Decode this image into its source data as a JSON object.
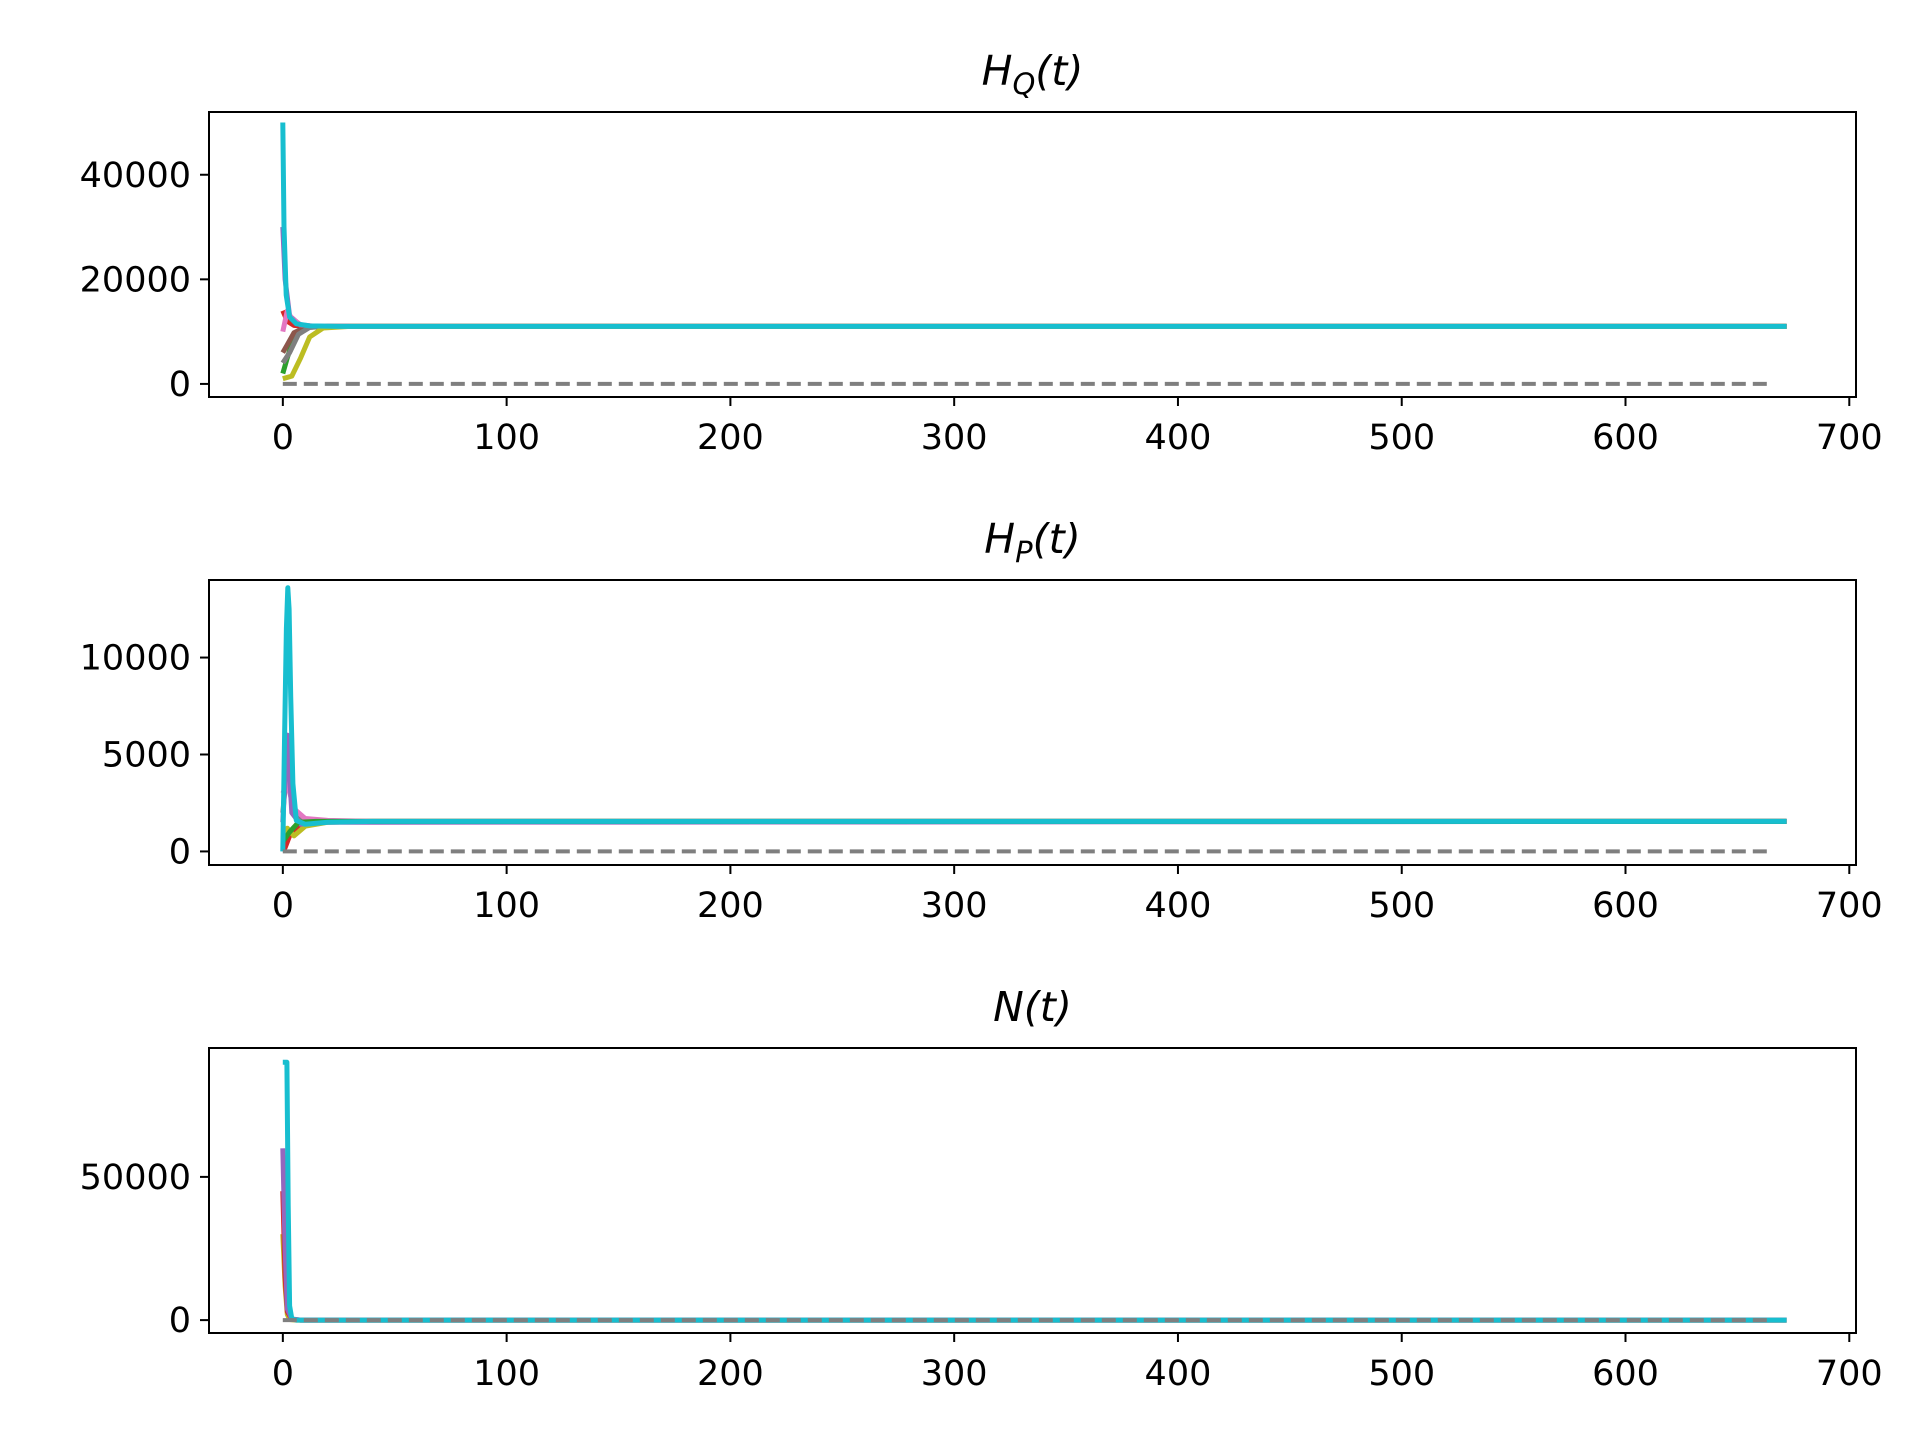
{
  "chart_data": [
    {
      "type": "line",
      "title": "H_Q(t)",
      "title_main": "H",
      "title_sub": "Q",
      "title_tail": "(t)",
      "xlim": [
        -33,
        703
      ],
      "ylim": [
        -2500,
        52000
      ],
      "xticks": [
        0,
        100,
        200,
        300,
        400,
        500,
        600,
        700
      ],
      "yticks": [
        0,
        20000,
        40000
      ],
      "series": [
        {
          "color": "#2ca02c",
          "style": "solid",
          "points": [
            [
              0,
              2000
            ],
            [
              2,
              5000
            ],
            [
              5,
              9000
            ],
            [
              10,
              10800
            ],
            [
              20,
              11000
            ],
            [
              672,
              11000
            ]
          ]
        },
        {
          "color": "#d62728",
          "style": "solid",
          "points": [
            [
              0,
              14000
            ],
            [
              2,
              12000
            ],
            [
              5,
              11200
            ],
            [
              10,
              11000
            ],
            [
              672,
              11000
            ]
          ]
        },
        {
          "color": "#9467bd",
          "style": "solid",
          "points": [
            [
              0,
              30000
            ],
            [
              1,
              20000
            ],
            [
              3,
              13000
            ],
            [
              8,
              11200
            ],
            [
              15,
              11000
            ],
            [
              672,
              11000
            ]
          ]
        },
        {
          "color": "#8c564b",
          "style": "solid",
          "points": [
            [
              0,
              6000
            ],
            [
              2,
              7500
            ],
            [
              5,
              9800
            ],
            [
              10,
              10800
            ],
            [
              20,
              11000
            ],
            [
              672,
              11000
            ]
          ]
        },
        {
          "color": "#e377c2",
          "style": "solid",
          "points": [
            [
              0,
              10000
            ],
            [
              2,
              14000
            ],
            [
              4,
              12500
            ],
            [
              8,
              11300
            ],
            [
              15,
              11000
            ],
            [
              672,
              11000
            ]
          ]
        },
        {
          "color": "#7f7f7f",
          "style": "solid",
          "points": [
            [
              0,
              4000
            ],
            [
              3,
              6000
            ],
            [
              7,
              9500
            ],
            [
              12,
              10800
            ],
            [
              20,
              11000
            ],
            [
              672,
              11000
            ]
          ]
        },
        {
          "color": "#bcbd22",
          "style": "solid",
          "points": [
            [
              0,
              1000
            ],
            [
              4,
              1500
            ],
            [
              8,
              5000
            ],
            [
              12,
              9000
            ],
            [
              18,
              10700
            ],
            [
              30,
              11000
            ],
            [
              672,
              11000
            ]
          ]
        },
        {
          "color": "#17becf",
          "style": "solid",
          "points": [
            [
              0,
              50000
            ],
            [
              0.5,
              30000
            ],
            [
              1.5,
              17000
            ],
            [
              3,
              12800
            ],
            [
              6,
              11500
            ],
            [
              12,
              11100
            ],
            [
              25,
              11000
            ],
            [
              672,
              11000
            ]
          ]
        },
        {
          "color": "#7f7f7f",
          "style": "dashed",
          "points": [
            [
              0,
              0
            ],
            [
              666,
              0
            ]
          ]
        }
      ]
    },
    {
      "type": "line",
      "title": "H_P(t)",
      "title_main": "H",
      "title_sub": "P",
      "title_tail": "(t)",
      "xlim": [
        -33,
        703
      ],
      "ylim": [
        -700,
        14000
      ],
      "xticks": [
        0,
        100,
        200,
        300,
        400,
        500,
        600,
        700
      ],
      "yticks": [
        0,
        5000,
        10000
      ],
      "series": [
        {
          "color": "#d62728",
          "style": "solid",
          "points": [
            [
              0,
              0
            ],
            [
              1,
              200
            ],
            [
              3,
              800
            ],
            [
              8,
              1300
            ],
            [
              15,
              1500
            ],
            [
              30,
              1550
            ],
            [
              672,
              1550
            ]
          ]
        },
        {
          "color": "#bcbd22",
          "style": "solid",
          "points": [
            [
              0,
              700
            ],
            [
              2,
              1200
            ],
            [
              5,
              800
            ],
            [
              10,
              1300
            ],
            [
              20,
              1500
            ],
            [
              40,
              1550
            ],
            [
              672,
              1550
            ]
          ]
        },
        {
          "color": "#7f7f7f",
          "style": "solid",
          "points": [
            [
              0,
              2000
            ],
            [
              2,
              4500
            ],
            [
              4,
              2500
            ],
            [
              8,
              1600
            ],
            [
              15,
              1550
            ],
            [
              672,
              1550
            ]
          ]
        },
        {
          "color": "#e377c2",
          "style": "solid",
          "points": [
            [
              0,
              3000
            ],
            [
              2,
              3500
            ],
            [
              5,
              2200
            ],
            [
              10,
              1700
            ],
            [
              20,
              1600
            ],
            [
              40,
              1550
            ],
            [
              672,
              1550
            ]
          ]
        },
        {
          "color": "#9467bd",
          "style": "solid",
          "points": [
            [
              0,
              1500
            ],
            [
              2,
              6000
            ],
            [
              4,
              2000
            ],
            [
              8,
              1400
            ],
            [
              15,
              1500
            ],
            [
              672,
              1550
            ]
          ]
        },
        {
          "color": "#2ca02c",
          "style": "solid",
          "points": [
            [
              0,
              500
            ],
            [
              3,
              1000
            ],
            [
              7,
              1500
            ],
            [
              15,
              1550
            ],
            [
              672,
              1550
            ]
          ]
        },
        {
          "color": "#17becf",
          "style": "solid",
          "points": [
            [
              0,
              0
            ],
            [
              0.8,
              6000
            ],
            [
              1.6,
              11500
            ],
            [
              2.2,
              13600
            ],
            [
              2.8,
              12500
            ],
            [
              3.5,
              8000
            ],
            [
              4.5,
              3500
            ],
            [
              6,
              1600
            ],
            [
              10,
              1400
            ],
            [
              20,
              1500
            ],
            [
              40,
              1550
            ],
            [
              672,
              1550
            ]
          ]
        },
        {
          "color": "#7f7f7f",
          "style": "dashed",
          "points": [
            [
              0,
              0
            ],
            [
              666,
              0
            ]
          ]
        }
      ]
    },
    {
      "type": "line",
      "title": "N(t)",
      "title_main": "N",
      "title_sub": "",
      "title_tail": "(t)",
      "xlim": [
        -33,
        703
      ],
      "ylim": [
        -4500,
        95000
      ],
      "xticks": [
        0,
        100,
        200,
        300,
        400,
        500,
        600,
        700
      ],
      "yticks": [
        0,
        50000
      ],
      "series": [
        {
          "color": "#bcbd22",
          "style": "solid",
          "points": [
            [
              0,
              30000
            ],
            [
              1,
              12000
            ],
            [
              2,
              2000
            ],
            [
              3,
              200
            ],
            [
              6,
              0
            ],
            [
              672,
              0
            ]
          ]
        },
        {
          "color": "#d62728",
          "style": "solid",
          "points": [
            [
              0,
              45000
            ],
            [
              1,
              15000
            ],
            [
              2,
              3000
            ],
            [
              4,
              300
            ],
            [
              8,
              0
            ],
            [
              672,
              0
            ]
          ]
        },
        {
          "color": "#9467bd",
          "style": "solid",
          "points": [
            [
              0,
              60000
            ],
            [
              1,
              25000
            ],
            [
              2,
              4000
            ],
            [
              4,
              400
            ],
            [
              8,
              0
            ],
            [
              672,
              0
            ]
          ]
        },
        {
          "color": "#17becf",
          "style": "solid",
          "points": [
            [
              0,
              90000
            ],
            [
              1.8,
              90000
            ],
            [
              2.4,
              40000
            ],
            [
              3,
              5000
            ],
            [
              4,
              500
            ],
            [
              6,
              0
            ],
            [
              672,
              0
            ]
          ]
        },
        {
          "color": "#7f7f7f",
          "style": "dashed",
          "points": [
            [
              0,
              0
            ],
            [
              666,
              0
            ]
          ]
        }
      ]
    }
  ]
}
